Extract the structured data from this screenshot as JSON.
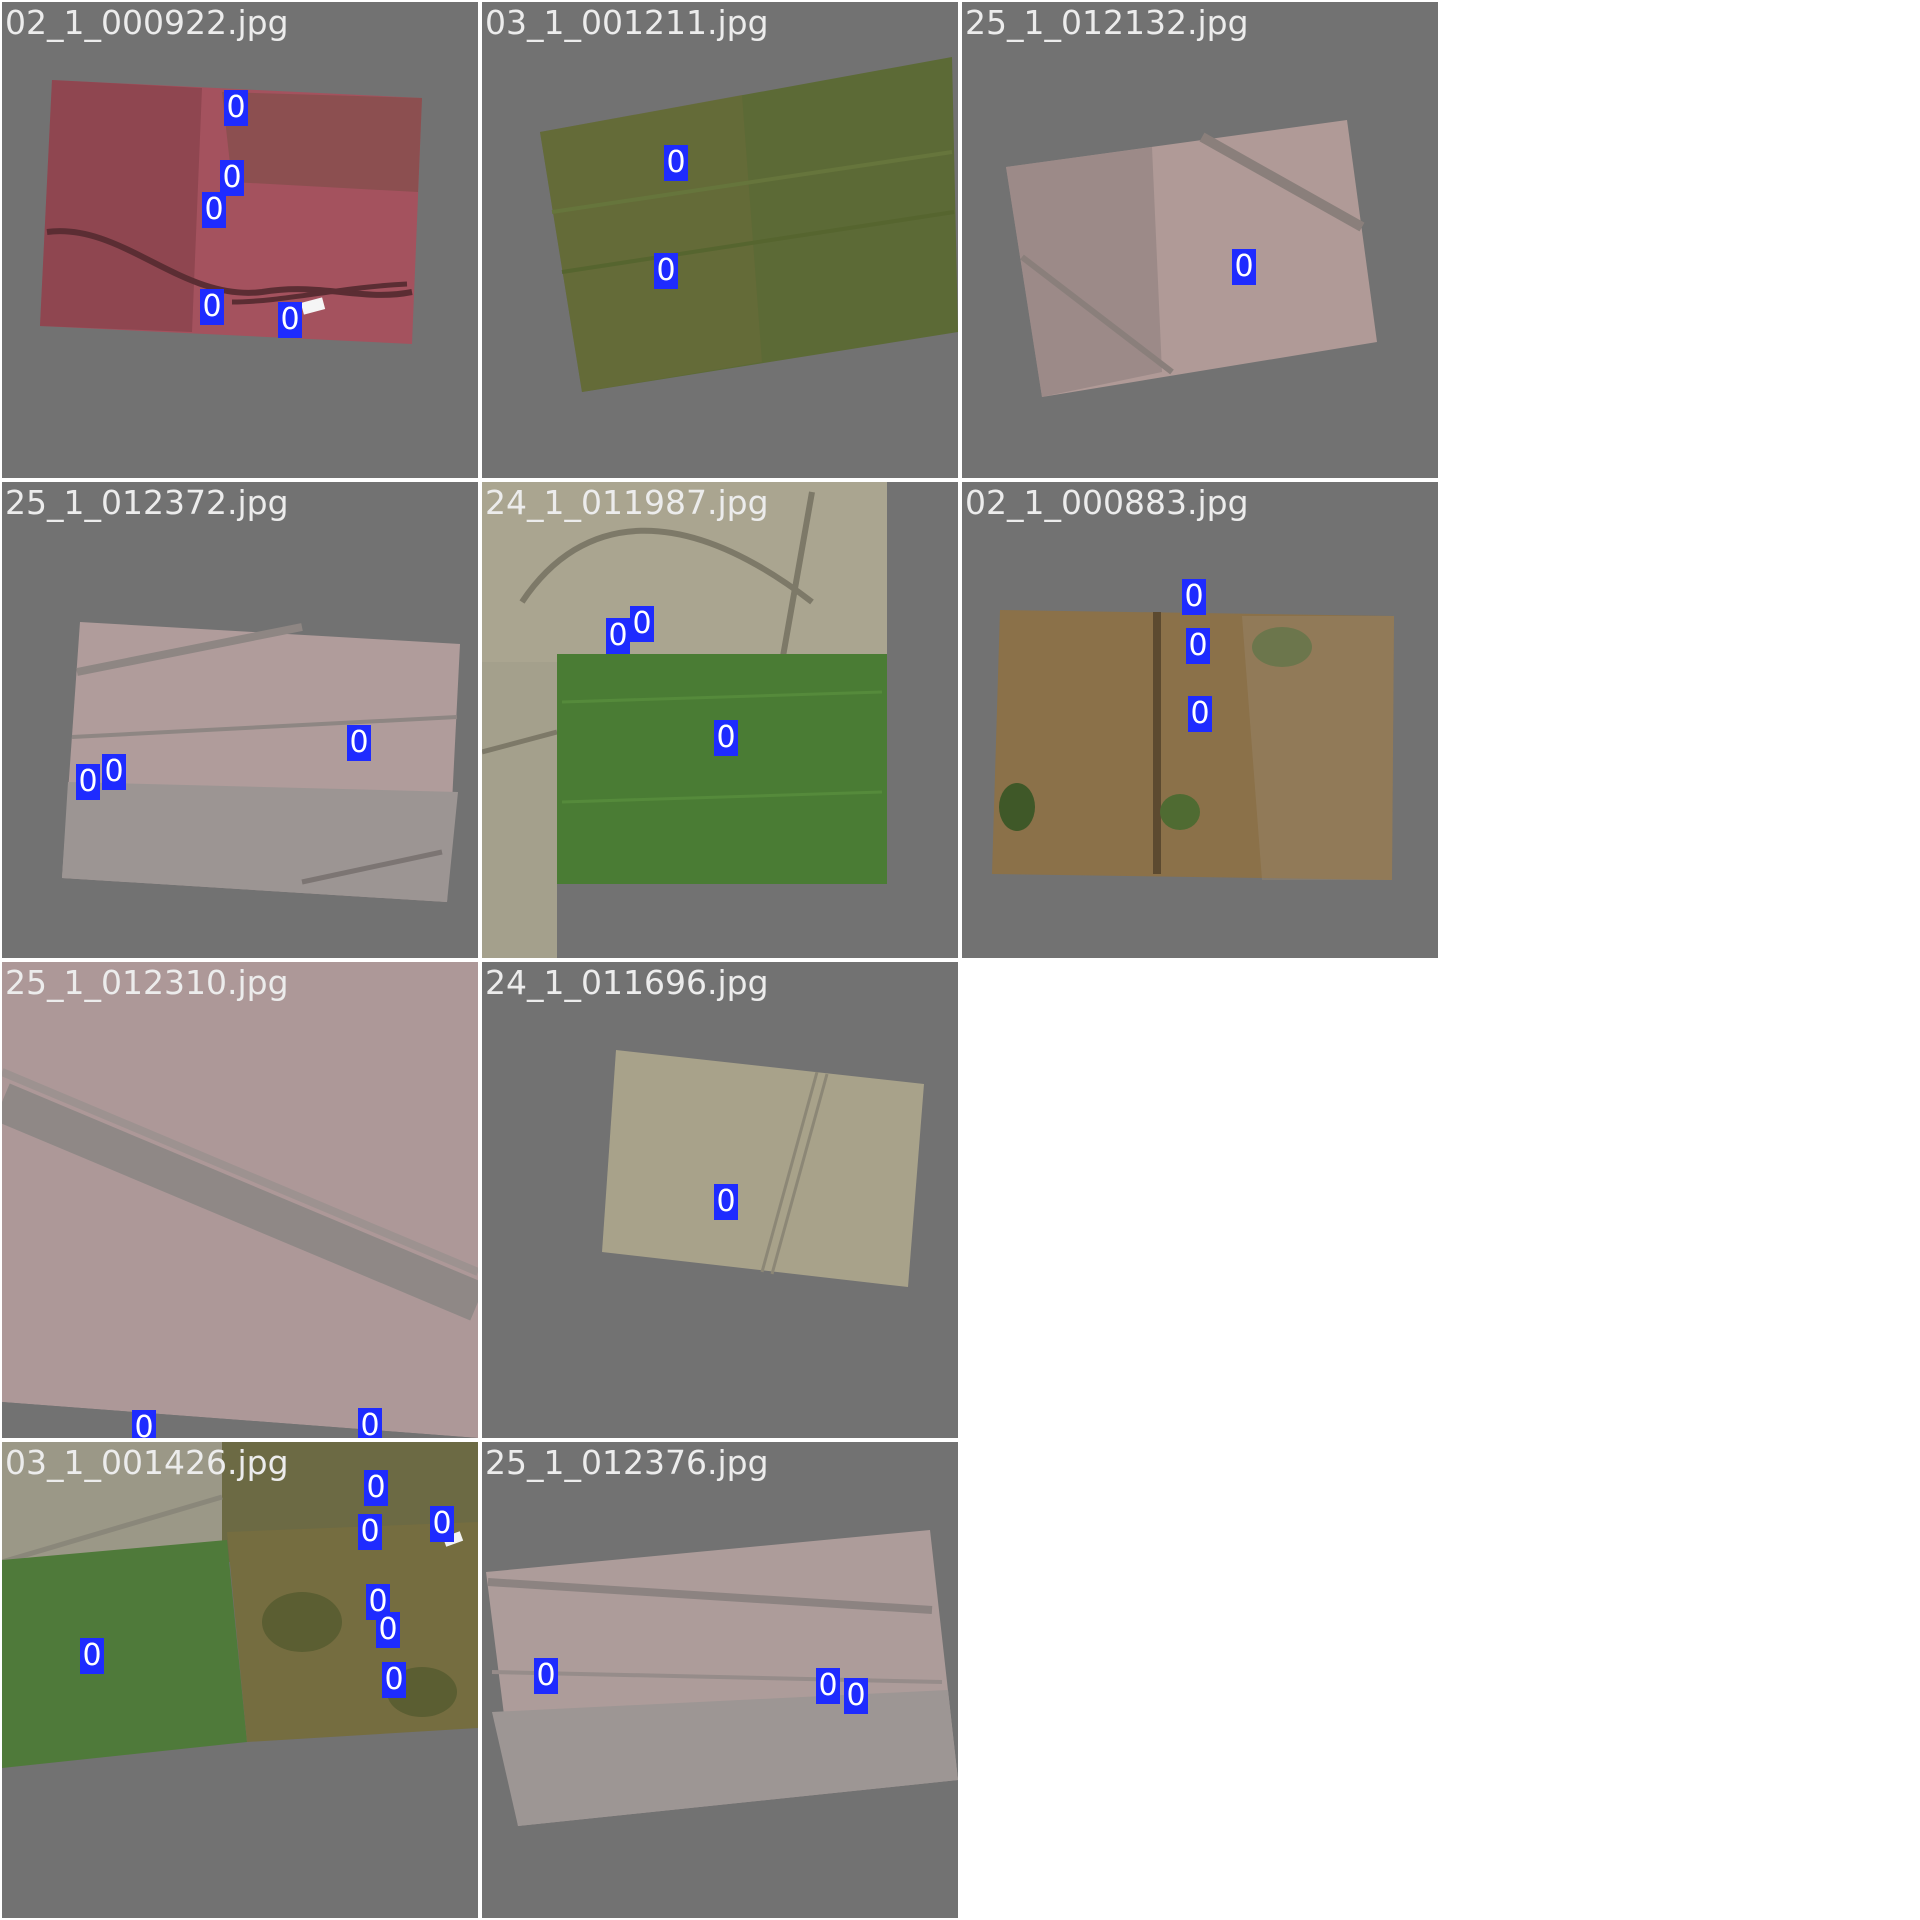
{
  "tiles": [
    {
      "filename": "02_1_000922.jpg",
      "boxes": [
        {
          "label": "0"
        },
        {
          "label": "0"
        },
        {
          "label": "0"
        },
        {
          "label": "0"
        },
        {
          "label": "0"
        }
      ]
    },
    {
      "filename": "03_1_001211.jpg",
      "boxes": [
        {
          "label": "0"
        },
        {
          "label": "0"
        }
      ]
    },
    {
      "filename": "25_1_012132.jpg",
      "boxes": [
        {
          "label": "0"
        }
      ]
    },
    {
      "filename": "25_1_012372.jpg",
      "boxes": [
        {
          "label": "0"
        },
        {
          "label": "0"
        },
        {
          "label": "0"
        }
      ]
    },
    {
      "filename": "24_1_011987.jpg",
      "boxes": [
        {
          "label": "0"
        },
        {
          "label": "0"
        },
        {
          "label": "0"
        }
      ]
    },
    {
      "filename": "02_1_000883.jpg",
      "boxes": [
        {
          "label": "0"
        },
        {
          "label": "0"
        },
        {
          "label": "0"
        }
      ]
    },
    {
      "filename": "25_1_012310.jpg",
      "boxes": [
        {
          "label": "0"
        },
        {
          "label": "0"
        }
      ]
    },
    {
      "filename": "24_1_011696.jpg",
      "boxes": [
        {
          "label": "0"
        }
      ]
    },
    {
      "filename": "03_1_001426.jpg",
      "boxes": [
        {
          "label": "0"
        },
        {
          "label": "0"
        },
        {
          "label": "0"
        },
        {
          "label": "0"
        },
        {
          "label": "0"
        },
        {
          "label": "0"
        },
        {
          "label": "0"
        }
      ]
    },
    {
      "filename": "25_1_012376.jpg",
      "boxes": [
        {
          "label": "0"
        },
        {
          "label": "0"
        },
        {
          "label": "0"
        }
      ]
    }
  ],
  "colors": {
    "canvas_background": "#ffffff",
    "tile_background": "#727272",
    "box_fill": "#1e2bff",
    "box_text": "#ffffff",
    "filename_text": "#ececec"
  }
}
